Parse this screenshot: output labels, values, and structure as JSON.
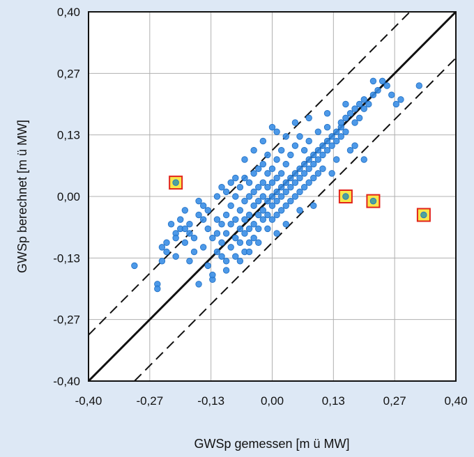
{
  "chart_data": {
    "type": "scatter",
    "xlabel": "GWSp gemessen [m ü MW]",
    "ylabel": "GWSp berechnet [m ü MW]",
    "xlim": [
      -0.4,
      0.4
    ],
    "ylim": [
      -0.4,
      0.4
    ],
    "x_ticks": [
      "-0,40",
      "-0,27",
      "-0,13",
      "0,00",
      "0,13",
      "0,27",
      "0,40"
    ],
    "y_ticks": [
      "-0,40",
      "-0,27",
      "-0,13",
      "0,00",
      "0,13",
      "0,27",
      "0,40"
    ],
    "grid": true,
    "reference_lines": [
      {
        "style": "solid",
        "slope": 1,
        "intercept": 0
      },
      {
        "style": "dashed",
        "slope": 1,
        "intercept": 0.1
      },
      {
        "style": "dashed",
        "slope": 1,
        "intercept": -0.1
      }
    ],
    "colors": {
      "points": "#3a8ee6",
      "outliers_fill": "#f7e84a",
      "outliers_border": "#e2231a"
    },
    "series": [
      {
        "style": "points",
        "points": [
          [
            -0.3,
            -0.15
          ],
          [
            -0.25,
            -0.19
          ],
          [
            -0.25,
            -0.2
          ],
          [
            -0.24,
            -0.14
          ],
          [
            -0.24,
            -0.11
          ],
          [
            -0.23,
            -0.12
          ],
          [
            -0.23,
            -0.1
          ],
          [
            -0.22,
            -0.06
          ],
          [
            -0.21,
            -0.08
          ],
          [
            -0.21,
            -0.13
          ],
          [
            -0.2,
            -0.05
          ],
          [
            -0.2,
            -0.07
          ],
          [
            -0.19,
            -0.1
          ],
          [
            -0.19,
            -0.03
          ],
          [
            -0.18,
            -0.08
          ],
          [
            -0.18,
            -0.06
          ],
          [
            -0.17,
            -0.12
          ],
          [
            -0.17,
            -0.09
          ],
          [
            -0.16,
            -0.04
          ],
          [
            -0.16,
            -0.01
          ],
          [
            -0.15,
            -0.05
          ],
          [
            -0.15,
            -0.11
          ],
          [
            -0.14,
            -0.07
          ],
          [
            -0.14,
            -0.03
          ],
          [
            -0.13,
            -0.09
          ],
          [
            -0.13,
            -0.18
          ],
          [
            -0.12,
            -0.05
          ],
          [
            -0.12,
            -0.12
          ],
          [
            -0.12,
            0.0
          ],
          [
            -0.11,
            -0.06
          ],
          [
            -0.11,
            -0.1
          ],
          [
            -0.11,
            0.02
          ],
          [
            -0.1,
            -0.04
          ],
          [
            -0.1,
            -0.08
          ],
          [
            -0.1,
            -0.14
          ],
          [
            -0.09,
            -0.02
          ],
          [
            -0.09,
            -0.06
          ],
          [
            -0.09,
            -0.11
          ],
          [
            -0.09,
            0.03
          ],
          [
            -0.08,
            -0.05
          ],
          [
            -0.08,
            -0.09
          ],
          [
            -0.08,
            0.0
          ],
          [
            -0.08,
            -0.13
          ],
          [
            -0.07,
            -0.03
          ],
          [
            -0.07,
            -0.07
          ],
          [
            -0.07,
            0.02
          ],
          [
            -0.07,
            -0.1
          ],
          [
            -0.06,
            -0.01
          ],
          [
            -0.06,
            -0.05
          ],
          [
            -0.06,
            -0.08
          ],
          [
            -0.06,
            0.04
          ],
          [
            -0.06,
            -0.12
          ],
          [
            -0.05,
            0.0
          ],
          [
            -0.05,
            -0.04
          ],
          [
            -0.05,
            -0.07
          ],
          [
            -0.05,
            0.03
          ],
          [
            -0.05,
            -0.1
          ],
          [
            -0.04,
            -0.02
          ],
          [
            -0.04,
            -0.06
          ],
          [
            -0.04,
            0.01
          ],
          [
            -0.04,
            0.05
          ],
          [
            -0.04,
            -0.09
          ],
          [
            -0.03,
            -0.01
          ],
          [
            -0.03,
            -0.04
          ],
          [
            -0.03,
            0.02
          ],
          [
            -0.03,
            0.06
          ],
          [
            -0.03,
            -0.07
          ],
          [
            -0.02,
            0.0
          ],
          [
            -0.02,
            -0.03
          ],
          [
            -0.02,
            0.03
          ],
          [
            -0.02,
            0.07
          ],
          [
            -0.02,
            -0.05
          ],
          [
            -0.01,
            -0.01
          ],
          [
            -0.01,
            0.02
          ],
          [
            -0.01,
            0.05
          ],
          [
            -0.01,
            -0.04
          ],
          [
            -0.01,
            0.09
          ],
          [
            0.0,
            0.0
          ],
          [
            0.0,
            -0.02
          ],
          [
            0.0,
            0.03
          ],
          [
            0.0,
            0.06
          ],
          [
            0.0,
            -0.05
          ],
          [
            0.01,
            0.01
          ],
          [
            0.01,
            -0.01
          ],
          [
            0.01,
            0.04
          ],
          [
            0.01,
            0.08
          ],
          [
            0.01,
            -0.04
          ],
          [
            0.02,
            0.02
          ],
          [
            0.02,
            0.0
          ],
          [
            0.02,
            0.05
          ],
          [
            0.02,
            0.1
          ],
          [
            0.02,
            -0.03
          ],
          [
            0.03,
            0.03
          ],
          [
            0.03,
            0.01
          ],
          [
            0.03,
            0.07
          ],
          [
            0.03,
            -0.02
          ],
          [
            0.04,
            0.04
          ],
          [
            0.04,
            0.02
          ],
          [
            0.04,
            0.09
          ],
          [
            0.04,
            -0.01
          ],
          [
            0.05,
            0.05
          ],
          [
            0.05,
            0.03
          ],
          [
            0.05,
            0.11
          ],
          [
            0.05,
            0.0
          ],
          [
            0.06,
            0.06
          ],
          [
            0.06,
            0.04
          ],
          [
            0.06,
            0.13
          ],
          [
            0.06,
            0.01
          ],
          [
            0.07,
            0.07
          ],
          [
            0.07,
            0.05
          ],
          [
            0.07,
            0.1
          ],
          [
            0.07,
            0.02
          ],
          [
            0.08,
            0.08
          ],
          [
            0.08,
            0.06
          ],
          [
            0.08,
            0.12
          ],
          [
            0.08,
            0.03
          ],
          [
            0.09,
            0.09
          ],
          [
            0.09,
            0.07
          ],
          [
            0.09,
            0.04
          ],
          [
            0.1,
            0.1
          ],
          [
            0.1,
            0.08
          ],
          [
            0.1,
            0.14
          ],
          [
            0.1,
            0.05
          ],
          [
            0.11,
            0.11
          ],
          [
            0.11,
            0.09
          ],
          [
            0.11,
            0.06
          ],
          [
            0.12,
            0.12
          ],
          [
            0.12,
            0.1
          ],
          [
            0.12,
            0.15
          ],
          [
            0.13,
            0.13
          ],
          [
            0.13,
            0.11
          ],
          [
            0.14,
            0.14
          ],
          [
            0.14,
            0.12
          ],
          [
            0.15,
            0.15
          ],
          [
            0.15,
            0.13
          ],
          [
            0.16,
            0.17
          ],
          [
            0.16,
            0.14
          ],
          [
            0.17,
            0.18
          ],
          [
            0.18,
            0.19
          ],
          [
            0.18,
            0.16
          ],
          [
            0.19,
            0.2
          ],
          [
            0.19,
            0.17
          ],
          [
            0.2,
            0.21
          ],
          [
            0.21,
            0.2
          ],
          [
            0.22,
            0.22
          ],
          [
            0.23,
            0.23
          ],
          [
            0.24,
            0.25
          ],
          [
            0.25,
            0.24
          ],
          [
            0.26,
            0.22
          ],
          [
            0.27,
            0.2
          ],
          [
            0.28,
            0.21
          ],
          [
            0.32,
            0.24
          ],
          [
            -0.02,
            0.12
          ],
          [
            0.01,
            0.14
          ],
          [
            0.03,
            0.13
          ],
          [
            0.05,
            0.16
          ],
          [
            -0.04,
            0.1
          ],
          [
            0.0,
            0.15
          ],
          [
            -0.06,
            0.08
          ],
          [
            0.08,
            0.17
          ],
          [
            0.12,
            0.18
          ],
          [
            0.16,
            0.2
          ],
          [
            0.2,
            0.19
          ],
          [
            0.22,
            0.25
          ],
          [
            0.15,
            0.16
          ],
          [
            0.13,
            0.05
          ],
          [
            0.14,
            0.08
          ],
          [
            0.18,
            0.11
          ],
          [
            0.2,
            0.08
          ],
          [
            0.17,
            0.1
          ],
          [
            0.09,
            -0.02
          ],
          [
            0.06,
            -0.03
          ],
          [
            0.03,
            -0.06
          ],
          [
            0.01,
            -0.08
          ],
          [
            -0.01,
            -0.07
          ],
          [
            -0.03,
            -0.1
          ],
          [
            -0.05,
            -0.12
          ],
          [
            -0.07,
            -0.14
          ],
          [
            -0.1,
            -0.16
          ],
          [
            -0.13,
            -0.17
          ],
          [
            -0.16,
            -0.19
          ],
          [
            -0.18,
            -0.14
          ],
          [
            -0.14,
            -0.15
          ],
          [
            -0.11,
            -0.13
          ],
          [
            -0.12,
            -0.08
          ],
          [
            -0.15,
            -0.02
          ],
          [
            -0.19,
            -0.07
          ],
          [
            -0.21,
            -0.09
          ],
          [
            -0.1,
            0.01
          ],
          [
            -0.08,
            0.04
          ]
        ]
      },
      {
        "style": "outliers",
        "points": [
          [
            -0.21,
            0.03
          ],
          [
            0.16,
            0.0
          ],
          [
            0.22,
            -0.01
          ],
          [
            0.33,
            -0.04
          ]
        ]
      }
    ]
  }
}
